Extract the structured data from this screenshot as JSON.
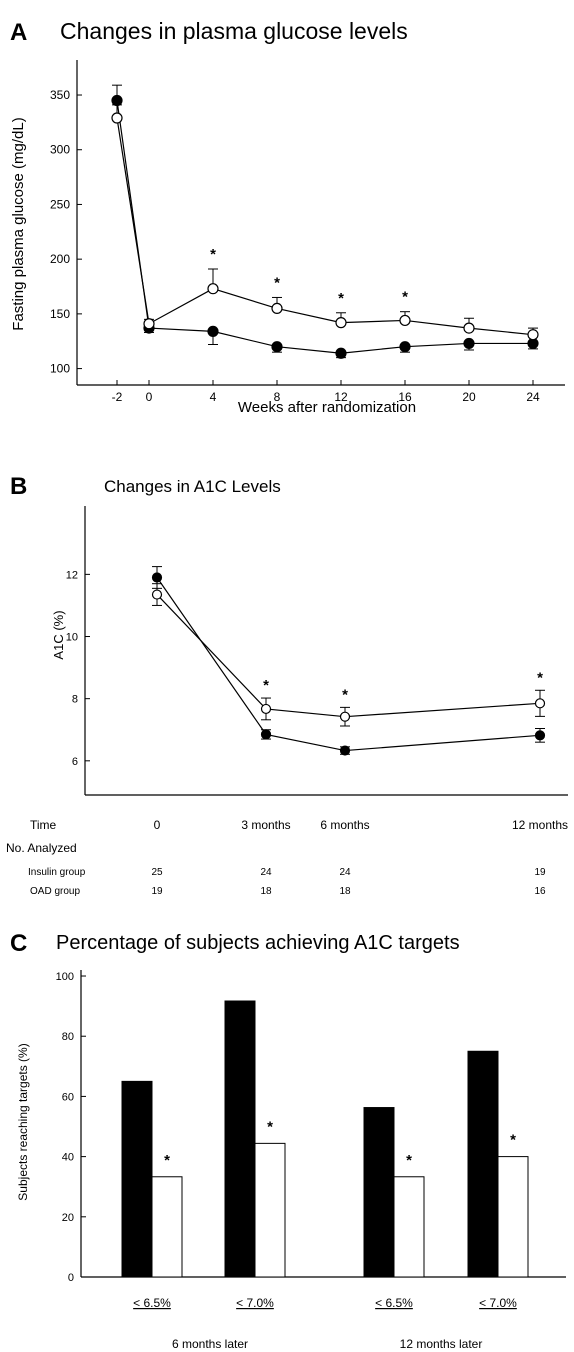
{
  "chart_data": [
    {
      "panel": "A",
      "type": "line",
      "title": "Changes in plasma glucose levels",
      "xlabel": "Weeks after randomization",
      "ylabel": "Fasting plasma glucose (mg/dL)",
      "x": [
        -2,
        0,
        4,
        8,
        12,
        16,
        20,
        24
      ],
      "xlim": [
        -4.5,
        26
      ],
      "ylim": [
        85,
        382
      ],
      "yticks": [
        100,
        150,
        200,
        250,
        300,
        350
      ],
      "series": [
        {
          "marker": "filled",
          "values": [
            345,
            137,
            134,
            120,
            114,
            120,
            123,
            123
          ],
          "err": [
            14,
            4,
            12,
            5,
            4,
            5,
            6,
            5
          ]
        },
        {
          "marker": "open",
          "values": [
            329,
            141,
            173,
            155,
            142,
            144,
            137,
            131
          ],
          "err": [
            12,
            4,
            18,
            10,
            9,
            8,
            9,
            6
          ]
        }
      ],
      "annotations": [
        {
          "x": 4,
          "text": "*"
        },
        {
          "x": 8,
          "text": "*"
        },
        {
          "x": 12,
          "text": "*"
        },
        {
          "x": 16,
          "text": "*"
        }
      ]
    },
    {
      "panel": "B",
      "type": "line",
      "title": "Changes in A1C Levels",
      "ylabel": "A1C (%)",
      "categories": [
        "0",
        "3 months",
        "6 months",
        "12 months"
      ],
      "x": [
        0,
        3,
        6,
        12
      ],
      "ylim": [
        4.9,
        14.2
      ],
      "yticks": [
        6,
        8,
        10,
        12
      ],
      "series": [
        {
          "marker": "filled",
          "values": [
            11.9,
            6.85,
            6.33,
            6.82
          ],
          "err": [
            0.35,
            0.15,
            0.12,
            0.22
          ]
        },
        {
          "marker": "open",
          "values": [
            11.35,
            7.67,
            7.42,
            7.85
          ],
          "err": [
            0.35,
            0.35,
            0.3,
            0.42
          ]
        }
      ],
      "annotations": [
        {
          "x": 3,
          "text": "*"
        },
        {
          "x": 6,
          "text": "*"
        },
        {
          "x": 12,
          "text": "*"
        }
      ],
      "table": {
        "time_label": "Time",
        "analyzed_label": "No. Analyzed",
        "rows": [
          {
            "label": "Insulin group",
            "values": [
              "25",
              "24",
              "24",
              "19"
            ]
          },
          {
            "label": "OAD group",
            "values": [
              "19",
              "18",
              "18",
              "16"
            ]
          }
        ]
      }
    },
    {
      "panel": "C",
      "type": "bar",
      "title": "Percentage of subjects achieving A1C targets",
      "ylabel": "Subjects reaching targets (%)",
      "ylim": [
        0,
        102
      ],
      "yticks": [
        0,
        20,
        40,
        60,
        80,
        100
      ],
      "categories": [
        "< 6.5%",
        "< 7.0%",
        "< 6.5%",
        "< 7.0%"
      ],
      "groups": [
        "6 months later",
        "12 months later"
      ],
      "series": [
        {
          "fill": "#000000",
          "values": [
            65,
            91.7,
            56.3,
            75
          ]
        },
        {
          "fill": "#ffffff",
          "values": [
            33.3,
            44.4,
            33.3,
            40
          ]
        }
      ],
      "annotations": [
        {
          "category": 0,
          "text": "*"
        },
        {
          "category": 1,
          "text": "*"
        },
        {
          "category": 2,
          "text": "*"
        },
        {
          "category": 3,
          "text": "*"
        }
      ]
    }
  ]
}
